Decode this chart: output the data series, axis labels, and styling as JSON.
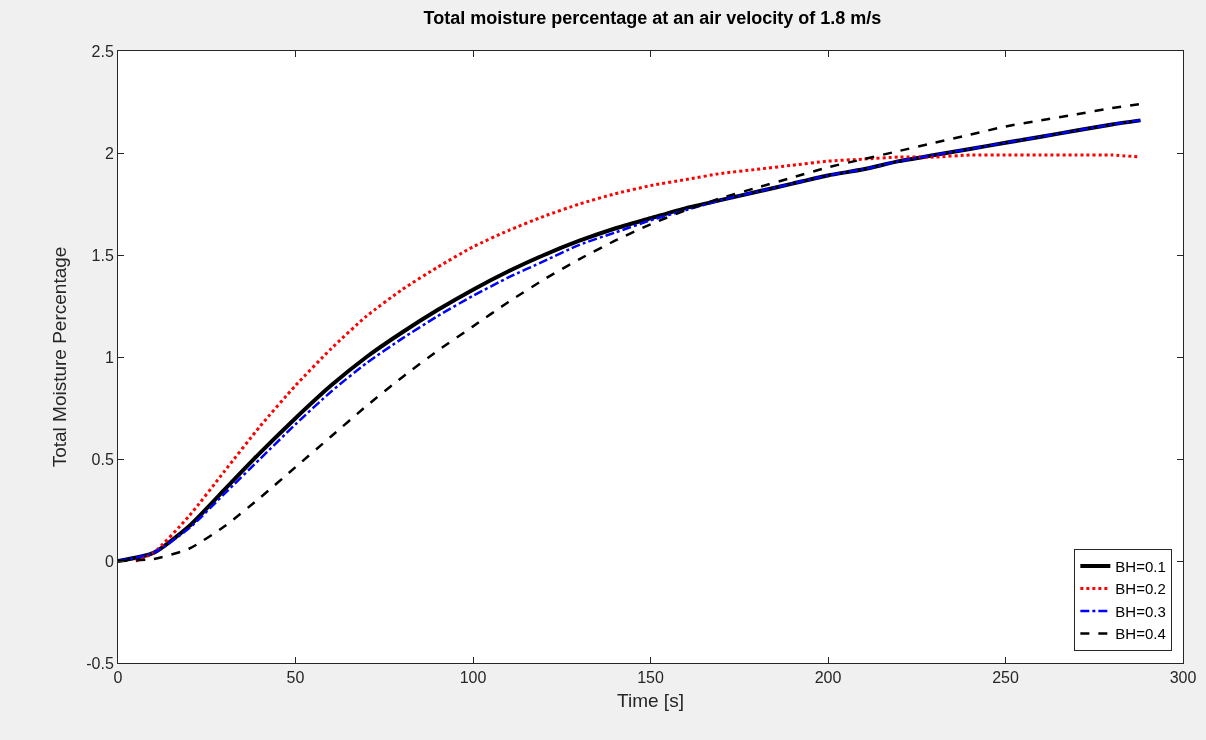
{
  "chart_data": {
    "type": "line",
    "title": "Total moisture percentage at an air velocity of 1.8 m/s",
    "xlabel": "Time [s]",
    "ylabel": "Total Moisture Percentage",
    "x": [
      0,
      10,
      20,
      30,
      40,
      50,
      60,
      70,
      80,
      90,
      100,
      110,
      120,
      130,
      140,
      150,
      160,
      170,
      180,
      190,
      200,
      210,
      220,
      230,
      240,
      250,
      260,
      270,
      280,
      288
    ],
    "series": [
      {
        "name": "BH=0.1",
        "color": "#000000",
        "line_style": "solid",
        "values": [
          0,
          0.04,
          0.17,
          0.35,
          0.53,
          0.7,
          0.86,
          1.0,
          1.12,
          1.23,
          1.33,
          1.42,
          1.5,
          1.57,
          1.63,
          1.68,
          1.73,
          1.77,
          1.81,
          1.85,
          1.89,
          1.92,
          1.96,
          1.99,
          2.02,
          2.05,
          2.08,
          2.11,
          2.14,
          2.16
        ]
      },
      {
        "name": "BH=0.2",
        "color": "#ff0000",
        "line_style": "dotted",
        "x": [
          5,
          10,
          20,
          30,
          40,
          50,
          60,
          70,
          80,
          90,
          100,
          110,
          120,
          130,
          140,
          150,
          160,
          170,
          180,
          190,
          200,
          210,
          220,
          230,
          240,
          250,
          260,
          270,
          280,
          288
        ],
        "values": [
          0,
          0.04,
          0.22,
          0.44,
          0.66,
          0.86,
          1.04,
          1.2,
          1.33,
          1.44,
          1.54,
          1.62,
          1.69,
          1.75,
          1.8,
          1.84,
          1.87,
          1.9,
          1.92,
          1.94,
          1.96,
          1.97,
          1.98,
          1.98,
          1.99,
          1.99,
          1.99,
          1.99,
          1.99,
          1.98
        ]
      },
      {
        "name": "BH=0.3",
        "color": "#0000ff",
        "line_style": "dashdot",
        "values": [
          0,
          0.04,
          0.16,
          0.33,
          0.5,
          0.67,
          0.83,
          0.97,
          1.09,
          1.2,
          1.3,
          1.39,
          1.47,
          1.55,
          1.61,
          1.67,
          1.72,
          1.77,
          1.81,
          1.85,
          1.89,
          1.92,
          1.96,
          1.99,
          2.02,
          2.05,
          2.08,
          2.11,
          2.14,
          2.16
        ]
      },
      {
        "name": "BH=0.4",
        "color": "#000000",
        "line_style": "dashed",
        "values": [
          0,
          0.01,
          0.06,
          0.17,
          0.31,
          0.46,
          0.61,
          0.76,
          0.9,
          1.03,
          1.15,
          1.27,
          1.38,
          1.48,
          1.57,
          1.65,
          1.72,
          1.78,
          1.83,
          1.88,
          1.93,
          1.97,
          2.01,
          2.05,
          2.09,
          2.13,
          2.16,
          2.19,
          2.22,
          2.24
        ]
      }
    ],
    "xlim": [
      0,
      300
    ],
    "xticks": [
      0,
      50,
      100,
      150,
      200,
      250,
      300
    ],
    "ylim": [
      -0.5,
      2.5
    ],
    "yticks": [
      -0.5,
      0,
      0.5,
      1,
      1.5,
      2,
      2.5
    ],
    "grid": false,
    "legend": "bottom right"
  }
}
